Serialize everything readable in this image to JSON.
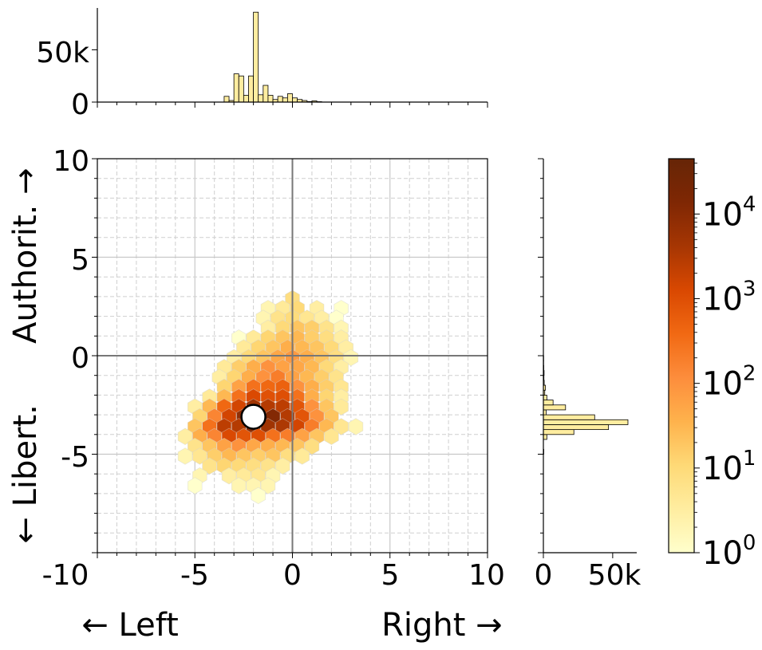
{
  "chart_data": [
    {
      "panel": "top-histogram",
      "type": "bar",
      "ytick_labels": [
        "0",
        "50k"
      ],
      "yticks": [
        0,
        50000
      ],
      "ylim": [
        0,
        90000
      ],
      "xlim": [
        -10,
        10
      ],
      "bins": [
        {
          "x0": -3.5,
          "x1": -3.25,
          "v": 5500
        },
        {
          "x0": -3.25,
          "x1": -3.0,
          "v": 1500
        },
        {
          "x0": -3.0,
          "x1": -2.75,
          "v": 27000
        },
        {
          "x0": -2.75,
          "x1": -2.5,
          "v": 25000
        },
        {
          "x0": -2.5,
          "x1": -2.25,
          "v": 6500
        },
        {
          "x0": -2.25,
          "x1": -2.0,
          "v": 25000
        },
        {
          "x0": -2.0,
          "x1": -1.75,
          "v": 86000
        },
        {
          "x0": -1.75,
          "x1": -1.5,
          "v": 7000
        },
        {
          "x0": -1.5,
          "x1": -1.25,
          "v": 16000
        },
        {
          "x0": -1.25,
          "x1": -1.0,
          "v": 6500
        },
        {
          "x0": -1.0,
          "x1": -0.75,
          "v": 2500
        },
        {
          "x0": -0.75,
          "x1": -0.5,
          "v": 5500
        },
        {
          "x0": -0.5,
          "x1": -0.25,
          "v": 4000
        },
        {
          "x0": -0.25,
          "x1": 0.0,
          "v": 8000
        },
        {
          "x0": 0.0,
          "x1": 0.25,
          "v": 4000
        },
        {
          "x0": 0.25,
          "x1": 0.5,
          "v": 2500
        },
        {
          "x0": 0.5,
          "x1": 0.75,
          "v": 1500
        },
        {
          "x0": 0.75,
          "x1": 1.0,
          "v": 500
        },
        {
          "x0": 1.0,
          "x1": 1.25,
          "v": 1200
        },
        {
          "x0": 1.25,
          "x1": 1.5,
          "v": 400
        }
      ]
    },
    {
      "panel": "hexbin",
      "type": "heatmap",
      "xlabel": "← Left                    Right →",
      "ylabel": "← Libert.      Authorit. →",
      "xlim": [
        -10,
        10
      ],
      "ylim": [
        -10,
        10
      ],
      "xtick_labels": [
        "-10",
        "-5",
        "0",
        "5",
        "10"
      ],
      "xticks": [
        -10,
        -5,
        0,
        5,
        10
      ],
      "ytick_labels": [
        "-10",
        "-5",
        "0",
        "5",
        "10"
      ],
      "yticks": [
        -10,
        -5,
        0,
        5,
        10
      ],
      "grid": true,
      "scale": "log",
      "marker": {
        "x": -2.0,
        "y": -3.1
      },
      "cells": [
        {
          "x": 0.0,
          "y": 2.9,
          "v": 8
        },
        {
          "x": -1.25,
          "y": 2.4,
          "v": 2
        },
        {
          "x": -0.5,
          "y": 2.4,
          "v": 4
        },
        {
          "x": 0.25,
          "y": 2.4,
          "v": 10
        },
        {
          "x": 1.25,
          "y": 2.4,
          "v": 3
        },
        {
          "x": 2.5,
          "y": 2.4,
          "v": 1
        },
        {
          "x": -1.5,
          "y": 1.9,
          "v": 2
        },
        {
          "x": -0.75,
          "y": 1.9,
          "v": 6
        },
        {
          "x": 0.0,
          "y": 1.9,
          "v": 9
        },
        {
          "x": 0.75,
          "y": 1.9,
          "v": 5
        },
        {
          "x": 1.5,
          "y": 1.9,
          "v": 3
        },
        {
          "x": 2.25,
          "y": 1.9,
          "v": 1
        },
        {
          "x": -1.25,
          "y": 1.4,
          "v": 3
        },
        {
          "x": -0.5,
          "y": 1.4,
          "v": 10
        },
        {
          "x": 0.25,
          "y": 1.4,
          "v": 20
        },
        {
          "x": 1.0,
          "y": 1.4,
          "v": 15
        },
        {
          "x": 1.75,
          "y": 1.4,
          "v": 6
        },
        {
          "x": 2.5,
          "y": 1.4,
          "v": 2
        },
        {
          "x": -2.75,
          "y": 0.9,
          "v": 1
        },
        {
          "x": -2.0,
          "y": 0.9,
          "v": 4
        },
        {
          "x": -1.25,
          "y": 0.9,
          "v": 12
        },
        {
          "x": -0.5,
          "y": 0.9,
          "v": 20
        },
        {
          "x": 0.25,
          "y": 0.9,
          "v": 30
        },
        {
          "x": 1.0,
          "y": 0.9,
          "v": 15
        },
        {
          "x": 1.75,
          "y": 0.9,
          "v": 8
        },
        {
          "x": 2.5,
          "y": 0.9,
          "v": 3
        },
        {
          "x": -2.5,
          "y": 0.4,
          "v": 4
        },
        {
          "x": -1.75,
          "y": 0.4,
          "v": 12
        },
        {
          "x": -1.0,
          "y": 0.4,
          "v": 20
        },
        {
          "x": -0.25,
          "y": 0.4,
          "v": 40
        },
        {
          "x": 0.5,
          "y": 0.4,
          "v": 30
        },
        {
          "x": 1.25,
          "y": 0.4,
          "v": 20
        },
        {
          "x": 2.0,
          "y": 0.4,
          "v": 10
        },
        {
          "x": 2.75,
          "y": 0.4,
          "v": 3
        },
        {
          "x": -3.0,
          "y": -0.1,
          "v": 3
        },
        {
          "x": -2.25,
          "y": -0.1,
          "v": 10
        },
        {
          "x": -1.5,
          "y": -0.1,
          "v": 20
        },
        {
          "x": -0.75,
          "y": -0.1,
          "v": 50
        },
        {
          "x": 0.0,
          "y": -0.1,
          "v": 80
        },
        {
          "x": 0.75,
          "y": -0.1,
          "v": 40
        },
        {
          "x": 1.5,
          "y": -0.1,
          "v": 20
        },
        {
          "x": 2.25,
          "y": -0.1,
          "v": 8
        },
        {
          "x": 3.0,
          "y": -0.1,
          "v": 2
        },
        {
          "x": -3.5,
          "y": -0.6,
          "v": 4
        },
        {
          "x": -2.75,
          "y": -0.6,
          "v": 15
        },
        {
          "x": -2.0,
          "y": -0.6,
          "v": 40
        },
        {
          "x": -1.25,
          "y": -0.6,
          "v": 100
        },
        {
          "x": -0.5,
          "y": -0.6,
          "v": 60
        },
        {
          "x": 0.25,
          "y": -0.6,
          "v": 50
        },
        {
          "x": 1.0,
          "y": -0.6,
          "v": 30
        },
        {
          "x": 1.75,
          "y": -0.6,
          "v": 10
        },
        {
          "x": 2.5,
          "y": -0.6,
          "v": 3
        },
        {
          "x": -3.75,
          "y": -1.1,
          "v": 3
        },
        {
          "x": -3.0,
          "y": -1.1,
          "v": 12
        },
        {
          "x": -2.25,
          "y": -1.1,
          "v": 40
        },
        {
          "x": -1.5,
          "y": -1.1,
          "v": 100
        },
        {
          "x": -0.75,
          "y": -1.1,
          "v": 200
        },
        {
          "x": 0.0,
          "y": -1.1,
          "v": 60
        },
        {
          "x": 0.75,
          "y": -1.1,
          "v": 30
        },
        {
          "x": 1.5,
          "y": -1.1,
          "v": 15
        },
        {
          "x": 2.25,
          "y": -1.1,
          "v": 6
        },
        {
          "x": -3.5,
          "y": -1.6,
          "v": 12
        },
        {
          "x": -2.75,
          "y": -1.6,
          "v": 60
        },
        {
          "x": -2.0,
          "y": -1.6,
          "v": 300
        },
        {
          "x": -1.25,
          "y": -1.6,
          "v": 400
        },
        {
          "x": -0.5,
          "y": -1.6,
          "v": 500
        },
        {
          "x": 0.25,
          "y": -1.6,
          "v": 100
        },
        {
          "x": 1.0,
          "y": -1.6,
          "v": 40
        },
        {
          "x": 1.75,
          "y": -1.6,
          "v": 15
        },
        {
          "x": 2.5,
          "y": -1.6,
          "v": 5
        },
        {
          "x": -4.25,
          "y": -2.1,
          "v": 4
        },
        {
          "x": -3.5,
          "y": -2.1,
          "v": 30
        },
        {
          "x": -2.75,
          "y": -2.1,
          "v": 300
        },
        {
          "x": -2.0,
          "y": -2.1,
          "v": 1200
        },
        {
          "x": -1.25,
          "y": -2.1,
          "v": 900
        },
        {
          "x": -0.5,
          "y": -2.1,
          "v": 1000
        },
        {
          "x": 0.25,
          "y": -2.1,
          "v": 300
        },
        {
          "x": 1.0,
          "y": -2.1,
          "v": 40
        },
        {
          "x": 1.75,
          "y": -2.1,
          "v": 12
        },
        {
          "x": 2.5,
          "y": -2.1,
          "v": 3
        },
        {
          "x": -5.0,
          "y": -2.6,
          "v": 3
        },
        {
          "x": -4.25,
          "y": -2.6,
          "v": 30
        },
        {
          "x": -3.5,
          "y": -2.6,
          "v": 400
        },
        {
          "x": -2.75,
          "y": -2.6,
          "v": 1500
        },
        {
          "x": -2.0,
          "y": -2.6,
          "v": 5000
        },
        {
          "x": -1.25,
          "y": -2.6,
          "v": 3000
        },
        {
          "x": -0.5,
          "y": -2.6,
          "v": 2500
        },
        {
          "x": 0.25,
          "y": -2.6,
          "v": 800
        },
        {
          "x": 1.0,
          "y": -2.6,
          "v": 100
        },
        {
          "x": 1.75,
          "y": -2.6,
          "v": 20
        },
        {
          "x": 2.5,
          "y": -2.6,
          "v": 4
        },
        {
          "x": -4.75,
          "y": -3.1,
          "v": 12
        },
        {
          "x": -4.0,
          "y": -3.1,
          "v": 150
        },
        {
          "x": -3.25,
          "y": -3.1,
          "v": 1500
        },
        {
          "x": -2.5,
          "y": -3.1,
          "v": 8000
        },
        {
          "x": -1.75,
          "y": -3.1,
          "v": 40000
        },
        {
          "x": -1.0,
          "y": -3.1,
          "v": 12000
        },
        {
          "x": -0.25,
          "y": -3.1,
          "v": 3000
        },
        {
          "x": 0.5,
          "y": -3.1,
          "v": 800
        },
        {
          "x": 1.25,
          "y": -3.1,
          "v": 100
        },
        {
          "x": 2.0,
          "y": -3.1,
          "v": 20
        },
        {
          "x": -5.0,
          "y": -3.6,
          "v": 20
        },
        {
          "x": -4.25,
          "y": -3.6,
          "v": 300
        },
        {
          "x": -3.5,
          "y": -3.6,
          "v": 2500
        },
        {
          "x": -2.75,
          "y": -3.6,
          "v": 3000
        },
        {
          "x": -2.0,
          "y": -3.6,
          "v": 10000
        },
        {
          "x": -1.25,
          "y": -3.6,
          "v": 5000
        },
        {
          "x": -0.5,
          "y": -3.6,
          "v": 3500
        },
        {
          "x": 0.25,
          "y": -3.6,
          "v": 1500
        },
        {
          "x": 1.0,
          "y": -3.6,
          "v": 200
        },
        {
          "x": 1.75,
          "y": -3.6,
          "v": 30
        },
        {
          "x": 2.5,
          "y": -3.6,
          "v": 5
        },
        {
          "x": 3.25,
          "y": -3.6,
          "v": 2
        },
        {
          "x": -5.5,
          "y": -4.1,
          "v": 3
        },
        {
          "x": -4.75,
          "y": -4.1,
          "v": 40
        },
        {
          "x": -4.0,
          "y": -4.1,
          "v": 150
        },
        {
          "x": -3.25,
          "y": -4.1,
          "v": 1200
        },
        {
          "x": -2.5,
          "y": -4.1,
          "v": 800
        },
        {
          "x": -1.75,
          "y": -4.1,
          "v": 1000
        },
        {
          "x": -1.0,
          "y": -4.1,
          "v": 300
        },
        {
          "x": -0.25,
          "y": -4.1,
          "v": 200
        },
        {
          "x": 0.5,
          "y": -4.1,
          "v": 60
        },
        {
          "x": 1.25,
          "y": -4.1,
          "v": 20
        },
        {
          "x": 2.0,
          "y": -4.1,
          "v": 5
        },
        {
          "x": -5.0,
          "y": -4.6,
          "v": 6
        },
        {
          "x": -4.25,
          "y": -4.6,
          "v": 20
        },
        {
          "x": -3.5,
          "y": -4.6,
          "v": 60
        },
        {
          "x": -2.75,
          "y": -4.6,
          "v": 100
        },
        {
          "x": -2.0,
          "y": -4.6,
          "v": 50
        },
        {
          "x": -1.25,
          "y": -4.6,
          "v": 40
        },
        {
          "x": -0.5,
          "y": -4.6,
          "v": 30
        },
        {
          "x": 0.25,
          "y": -4.6,
          "v": 20
        },
        {
          "x": 1.0,
          "y": -4.6,
          "v": 8
        },
        {
          "x": -5.5,
          "y": -5.1,
          "v": 2
        },
        {
          "x": -4.75,
          "y": -5.1,
          "v": 5
        },
        {
          "x": -4.0,
          "y": -5.1,
          "v": 15
        },
        {
          "x": -3.25,
          "y": -5.1,
          "v": 30
        },
        {
          "x": -2.5,
          "y": -5.1,
          "v": 20
        },
        {
          "x": -1.75,
          "y": -5.1,
          "v": 15
        },
        {
          "x": -1.0,
          "y": -5.1,
          "v": 20
        },
        {
          "x": -0.25,
          "y": -5.1,
          "v": 8
        },
        {
          "x": 0.5,
          "y": -5.1,
          "v": 4
        },
        {
          "x": -4.25,
          "y": -5.6,
          "v": 6
        },
        {
          "x": -3.5,
          "y": -5.6,
          "v": 12
        },
        {
          "x": -2.75,
          "y": -5.6,
          "v": 10
        },
        {
          "x": -2.0,
          "y": -5.6,
          "v": 8
        },
        {
          "x": -1.25,
          "y": -5.6,
          "v": 6
        },
        {
          "x": -0.5,
          "y": -5.6,
          "v": 3
        },
        {
          "x": -4.75,
          "y": -6.1,
          "v": 2
        },
        {
          "x": -3.25,
          "y": -6.1,
          "v": 3
        },
        {
          "x": -2.5,
          "y": -6.1,
          "v": 4
        },
        {
          "x": -1.75,
          "y": -6.1,
          "v": 5
        },
        {
          "x": -1.0,
          "y": -6.1,
          "v": 2
        },
        {
          "x": -5.0,
          "y": -6.6,
          "v": 1
        },
        {
          "x": -2.75,
          "y": -6.6,
          "v": 2
        },
        {
          "x": -2.0,
          "y": -6.6,
          "v": 2
        },
        {
          "x": -1.25,
          "y": -6.6,
          "v": 2
        },
        {
          "x": -1.75,
          "y": -7.1,
          "v": 1
        }
      ]
    },
    {
      "panel": "right-histogram",
      "type": "bar",
      "orientation": "horizontal",
      "xtick_labels": [
        "0",
        "50k"
      ],
      "xticks": [
        0,
        50000
      ],
      "xlim": [
        0,
        66000
      ],
      "ylim": [
        -10,
        10
      ],
      "bins": [
        {
          "y0": -5.0,
          "y1": -4.75,
          "v": 300
        },
        {
          "y0": -4.25,
          "y1": -4.0,
          "v": 2500
        },
        {
          "y0": -4.0,
          "y1": -3.75,
          "v": 22000
        },
        {
          "y0": -3.75,
          "y1": -3.5,
          "v": 47000
        },
        {
          "y0": -3.5,
          "y1": -3.25,
          "v": 61000
        },
        {
          "y0": -3.25,
          "y1": -3.0,
          "v": 37000
        },
        {
          "y0": -3.0,
          "y1": -2.75,
          "v": 2000
        },
        {
          "y0": -2.75,
          "y1": -2.5,
          "v": 16000
        },
        {
          "y0": -2.5,
          "y1": -2.25,
          "v": 7000
        },
        {
          "y0": -2.25,
          "y1": -2.0,
          "v": 2500
        },
        {
          "y0": -2.0,
          "y1": -1.75,
          "v": 1000
        },
        {
          "y0": -1.75,
          "y1": -1.5,
          "v": 1500
        },
        {
          "y0": -1.5,
          "y1": -1.25,
          "v": 600
        },
        {
          "y0": -1.25,
          "y1": -1.0,
          "v": 400
        },
        {
          "y0": -1.0,
          "y1": -0.75,
          "v": 500
        },
        {
          "y0": -0.75,
          "y1": -0.5,
          "v": 300
        },
        {
          "y0": -0.5,
          "y1": -0.25,
          "v": 200
        },
        {
          "y0": -0.25,
          "y1": 0.0,
          "v": 200
        }
      ]
    },
    {
      "panel": "colorbar",
      "type": "colorbar",
      "scale": "log",
      "range": [
        1,
        45000
      ],
      "ticks": [
        {
          "v": 1,
          "base": "10",
          "exp": "0"
        },
        {
          "v": 10,
          "base": "10",
          "exp": "1"
        },
        {
          "v": 100,
          "base": "10",
          "exp": "2"
        },
        {
          "v": 1000,
          "base": "10",
          "exp": "3"
        },
        {
          "v": 10000,
          "base": "10",
          "exp": "4"
        }
      ],
      "colormap": [
        "#ffffcc",
        "#ffeda0",
        "#fed976",
        "#feb24c",
        "#fd8d3c",
        "#f16913",
        "#d94801",
        "#a63603",
        "#7f2704",
        "#662506"
      ]
    }
  ]
}
